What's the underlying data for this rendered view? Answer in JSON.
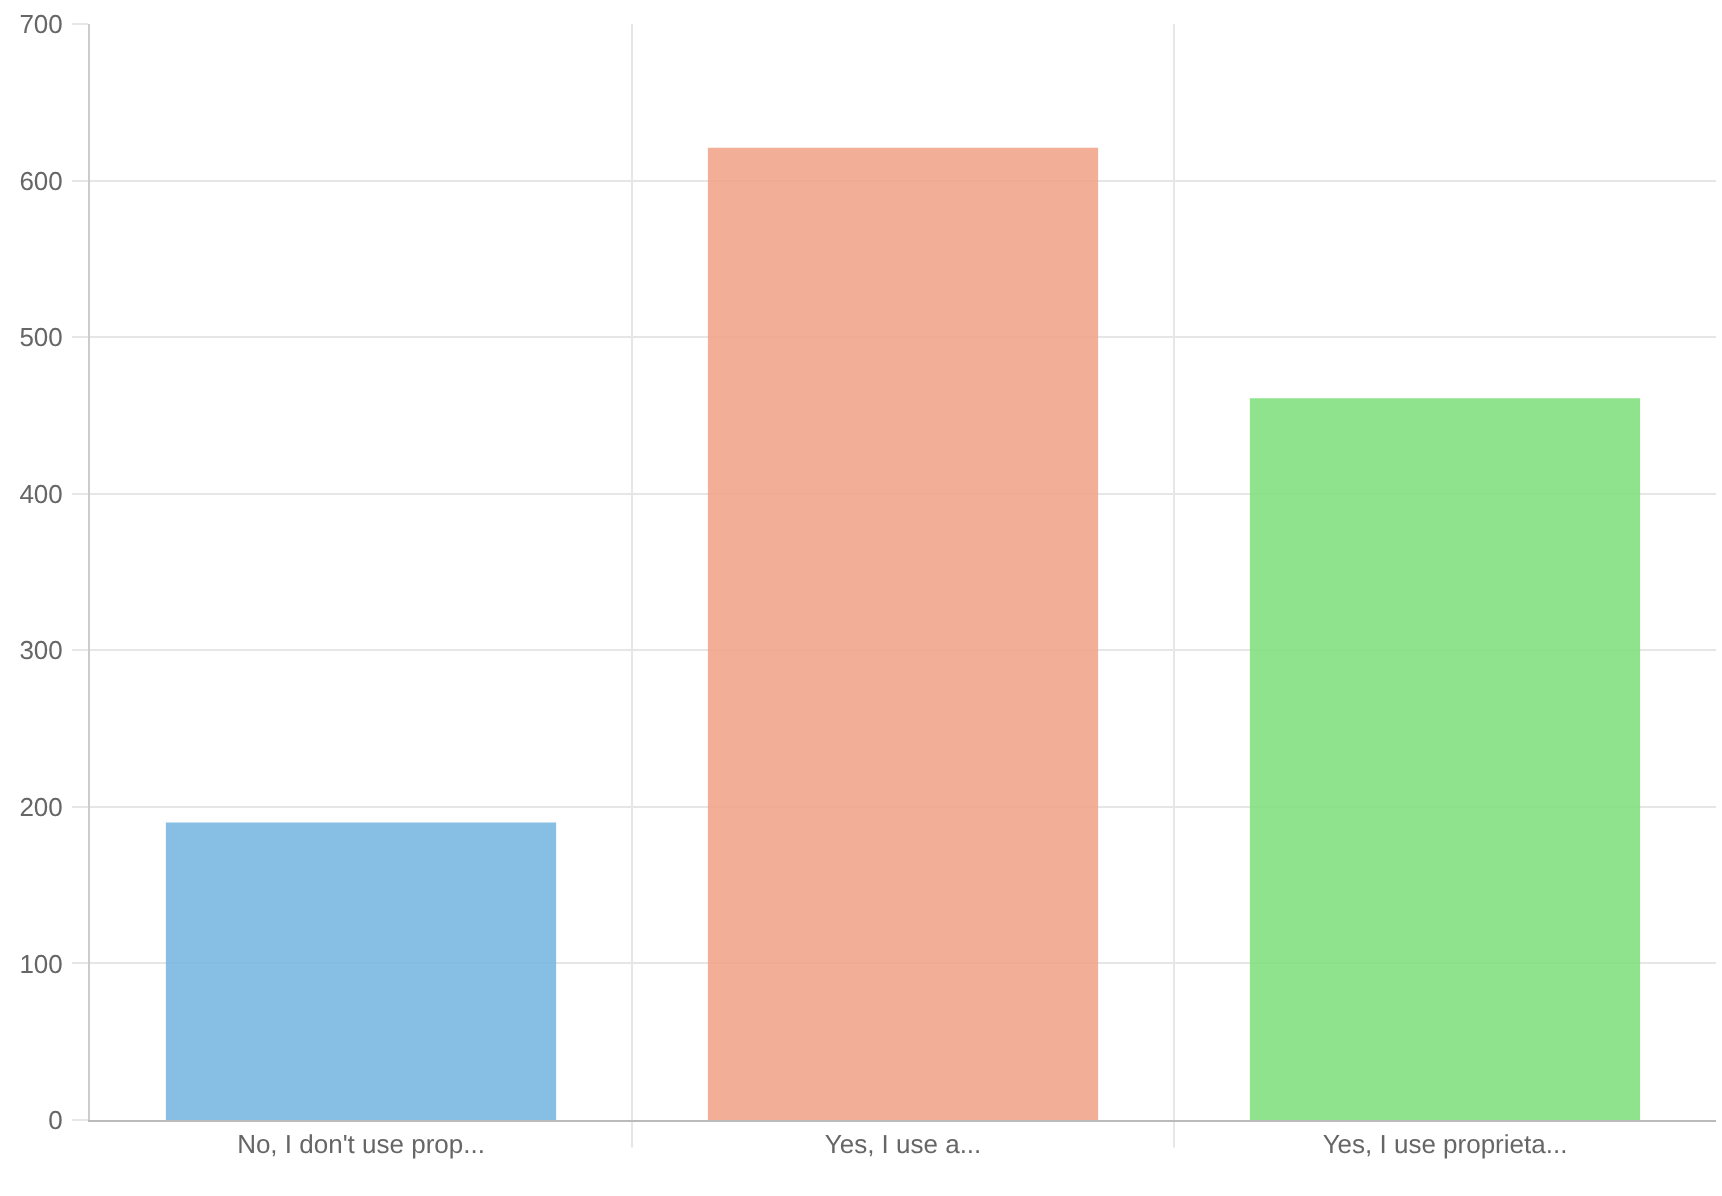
{
  "chart_data": {
    "type": "bar",
    "categories": [
      "No, I don't use prop...",
      "Yes, I use a...",
      "Yes, I use proprieta..."
    ],
    "values": [
      190,
      621,
      461
    ],
    "colors": [
      "#72b3de",
      "#f1a085",
      "#7ade78"
    ],
    "ylim": [
      0,
      700
    ],
    "yticks": [
      0,
      100,
      200,
      300,
      400,
      500,
      600,
      700
    ],
    "grid": true,
    "legend": false
  }
}
